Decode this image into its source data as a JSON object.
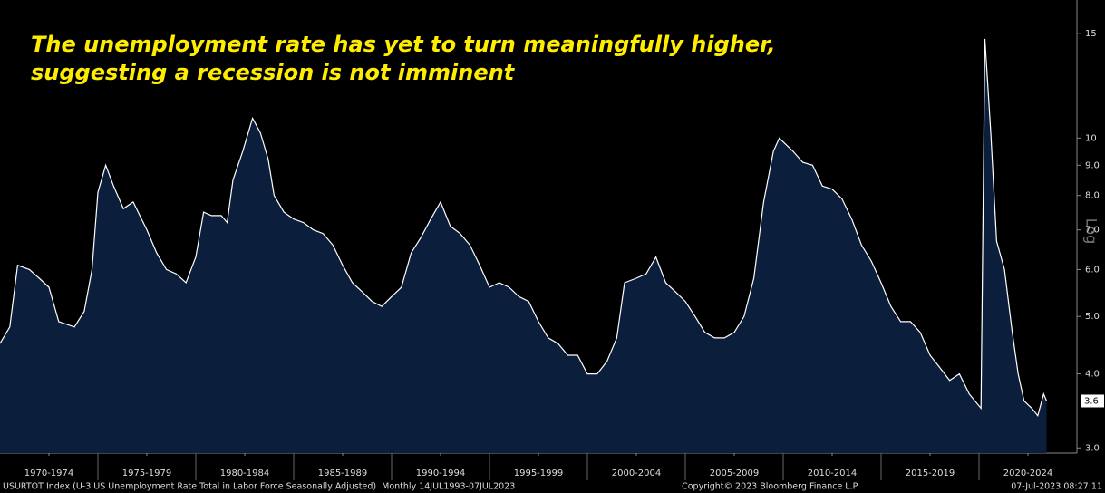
{
  "chart_data": {
    "type": "area",
    "title": "The unemployment rate has yet to turn meaningfully higher, suggesting a recession is not imminent",
    "scale_label": "Log",
    "source": "USURTOT Index (U-3 US Unemployment Rate Total in Labor Force Seasonally Adjusted)  Monthly 14JUL1993-07JUL2023",
    "copyright": "Copyright© 2023 Bloomberg Finance L.P.",
    "timestamp": "07-Jul-2023 08:27:11",
    "log_scale": true,
    "grid": false,
    "xlim": [
      1970,
      2025
    ],
    "xticks": [
      {
        "value": 1972.5,
        "label": "1970-1974"
      },
      {
        "value": 1977.5,
        "label": "1975-1979"
      },
      {
        "value": 1982.5,
        "label": "1980-1984"
      },
      {
        "value": 1987.5,
        "label": "1985-1989"
      },
      {
        "value": 1992.5,
        "label": "1990-1994"
      },
      {
        "value": 1997.5,
        "label": "1995-1999"
      },
      {
        "value": 2002.5,
        "label": "2000-2004"
      },
      {
        "value": 2007.5,
        "label": "2005-2009"
      },
      {
        "value": 2012.5,
        "label": "2010-2014"
      },
      {
        "value": 2017.5,
        "label": "2015-2019"
      },
      {
        "value": 2022.5,
        "label": "2020-2024"
      }
    ],
    "ylim": [
      2.94,
      17.1
    ],
    "yticks": [
      {
        "value": 3,
        "label": "3.0"
      },
      {
        "value": 4,
        "label": "4.0"
      },
      {
        "value": 5,
        "label": "5.0"
      },
      {
        "value": 6,
        "label": "6.0"
      },
      {
        "value": 7,
        "label": "7.0"
      },
      {
        "value": 8,
        "label": "8.0"
      },
      {
        "value": 9,
        "label": "9.0"
      },
      10,
      15
    ],
    "series": [
      {
        "name": "USURTOT Index",
        "color": "#ffffff",
        "fill": "#0b1f3c",
        "x": [
          1970.0,
          1970.5,
          1970.9,
          1971.5,
          1972.0,
          1972.5,
          1973.0,
          1973.8,
          1974.3,
          1974.7,
          1975.0,
          1975.4,
          1975.8,
          1976.3,
          1976.8,
          1977.5,
          1978.0,
          1978.5,
          1979.0,
          1979.5,
          1980.0,
          1980.4,
          1980.8,
          1981.3,
          1981.6,
          1981.9,
          1982.4,
          1982.9,
          1983.3,
          1983.7,
          1984.0,
          1984.5,
          1985.0,
          1985.5,
          1986.0,
          1986.5,
          1987.0,
          1987.5,
          1988.0,
          1988.5,
          1989.0,
          1989.5,
          1990.0,
          1990.5,
          1991.0,
          1991.5,
          1992.0,
          1992.5,
          1993.0,
          1993.5,
          1994.0,
          1994.5,
          1995.0,
          1995.5,
          1996.0,
          1996.5,
          1997.0,
          1997.5,
          1998.0,
          1998.5,
          1999.0,
          1999.5,
          2000.0,
          2000.5,
          2001.0,
          2001.5,
          2001.9,
          2002.5,
          2003.0,
          2003.5,
          2004.0,
          2004.5,
          2005.0,
          2005.5,
          2006.0,
          2006.5,
          2007.0,
          2007.5,
          2008.0,
          2008.5,
          2009.0,
          2009.5,
          2009.8,
          2010.5,
          2011.0,
          2011.5,
          2012.0,
          2012.5,
          2013.0,
          2013.5,
          2014.0,
          2014.5,
          2015.0,
          2015.5,
          2016.0,
          2016.5,
          2017.0,
          2017.5,
          2018.0,
          2018.5,
          2019.0,
          2019.5,
          2020.1,
          2020.3,
          2020.6,
          2020.9,
          2021.3,
          2021.7,
          2022.0,
          2022.3,
          2022.7,
          2023.0,
          2023.3,
          2023.45
        ],
        "values": [
          4.5,
          4.8,
          6.1,
          6.0,
          5.8,
          5.6,
          4.9,
          4.8,
          5.1,
          6.0,
          8.1,
          9.0,
          8.3,
          7.6,
          7.8,
          7.0,
          6.4,
          6.0,
          5.9,
          5.7,
          6.3,
          7.5,
          7.4,
          7.4,
          7.2,
          8.5,
          9.5,
          10.8,
          10.2,
          9.2,
          8.0,
          7.5,
          7.3,
          7.2,
          7.0,
          6.9,
          6.6,
          6.1,
          5.7,
          5.5,
          5.3,
          5.2,
          5.4,
          5.6,
          6.4,
          6.8,
          7.3,
          7.8,
          7.1,
          6.9,
          6.6,
          6.1,
          5.6,
          5.7,
          5.6,
          5.4,
          5.3,
          4.9,
          4.6,
          4.5,
          4.3,
          4.3,
          4.0,
          4.0,
          4.2,
          4.6,
          5.7,
          5.8,
          5.9,
          6.3,
          5.7,
          5.5,
          5.3,
          5.0,
          4.7,
          4.6,
          4.6,
          4.7,
          5.0,
          5.8,
          7.8,
          9.5,
          10.0,
          9.5,
          9.1,
          9.0,
          8.3,
          8.2,
          7.9,
          7.3,
          6.6,
          6.2,
          5.7,
          5.2,
          4.9,
          4.9,
          4.7,
          4.3,
          4.1,
          3.9,
          4.0,
          3.7,
          3.5,
          14.7,
          10.2,
          6.7,
          6.0,
          4.7,
          4.0,
          3.6,
          3.5,
          3.4,
          3.7,
          3.6
        ]
      }
    ]
  }
}
